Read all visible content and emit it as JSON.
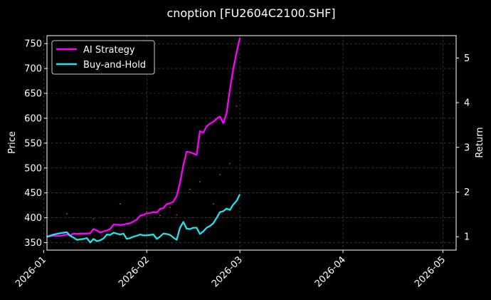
{
  "chart_data": {
    "type": "line",
    "title": "cnoption [FU2604C2100.SHF]",
    "xlabel": "",
    "ylabel": "Price",
    "y2label": "Return",
    "x_axis_type": "date",
    "xlim": [
      "2026-01-02",
      "2026-05-05"
    ],
    "ylim": [
      335,
      766
    ],
    "y2lim": [
      0.7,
      5.5
    ],
    "x_ticks": [
      "2026-01",
      "2026-02",
      "2026-03",
      "2026-04",
      "2026-05"
    ],
    "y_ticks": [
      350,
      400,
      450,
      500,
      550,
      600,
      650,
      700,
      750
    ],
    "y2_ticks": [
      1,
      2,
      3,
      4,
      5
    ],
    "grid": true,
    "legend_position": "top-left",
    "background": "#000000",
    "series": [
      {
        "name": "AI Strategy",
        "axis": "right",
        "color": "#ff00ff",
        "x": [
          "2026-01-02",
          "2026-01-04",
          "2026-01-06",
          "2026-01-08",
          "2026-01-09",
          "2026-01-10",
          "2026-01-11",
          "2026-01-12",
          "2026-01-13",
          "2026-01-14",
          "2026-01-15",
          "2026-01-16",
          "2026-01-17",
          "2026-01-18",
          "2026-01-19",
          "2026-01-20",
          "2026-01-21",
          "2026-01-22",
          "2026-01-23",
          "2026-01-24",
          "2026-01-25",
          "2026-01-26",
          "2026-01-27",
          "2026-01-28",
          "2026-01-29",
          "2026-01-30",
          "2026-01-31",
          "2026-02-01",
          "2026-02-02",
          "2026-02-03",
          "2026-02-04",
          "2026-02-05",
          "2026-02-06",
          "2026-02-07",
          "2026-02-08",
          "2026-02-09",
          "2026-02-10",
          "2026-02-11",
          "2026-02-12",
          "2026-02-13",
          "2026-02-14",
          "2026-02-15",
          "2026-02-16",
          "2026-02-17",
          "2026-02-18",
          "2026-02-19",
          "2026-02-20",
          "2026-02-21",
          "2026-02-22",
          "2026-02-23",
          "2026-02-24",
          "2026-02-25",
          "2026-02-26",
          "2026-02-27",
          "2026-02-28",
          "2026-03-01"
        ],
        "values": [
          1.0,
          1.02,
          1.02,
          1.05,
          1.03,
          1.07,
          1.06,
          1.07,
          1.07,
          1.07,
          1.08,
          1.17,
          1.14,
          1.09,
          1.12,
          1.14,
          1.17,
          1.27,
          1.27,
          1.26,
          1.27,
          1.29,
          1.3,
          1.34,
          1.38,
          1.47,
          1.49,
          1.52,
          1.53,
          1.55,
          1.54,
          1.62,
          1.64,
          1.73,
          1.75,
          1.78,
          1.91,
          2.21,
          2.6,
          2.9,
          2.89,
          2.86,
          2.83,
          3.36,
          3.33,
          3.47,
          3.53,
          3.57,
          3.64,
          3.69,
          3.54,
          3.76,
          4.29,
          4.75,
          5.12,
          5.45
        ]
      },
      {
        "name": "Buy-and-Hold",
        "axis": "right",
        "color": "#22e3ec",
        "x": [
          "2026-01-02",
          "2026-01-04",
          "2026-01-06",
          "2026-01-08",
          "2026-01-09",
          "2026-01-10",
          "2026-01-11",
          "2026-01-12",
          "2026-01-13",
          "2026-01-14",
          "2026-01-15",
          "2026-01-16",
          "2026-01-17",
          "2026-01-18",
          "2026-01-19",
          "2026-01-20",
          "2026-01-21",
          "2026-01-22",
          "2026-01-23",
          "2026-01-24",
          "2026-01-25",
          "2026-01-26",
          "2026-01-27",
          "2026-01-28",
          "2026-01-29",
          "2026-01-30",
          "2026-01-31",
          "2026-02-01",
          "2026-02-02",
          "2026-02-03",
          "2026-02-04",
          "2026-02-05",
          "2026-02-06",
          "2026-02-07",
          "2026-02-08",
          "2026-02-09",
          "2026-02-10",
          "2026-02-11",
          "2026-02-12",
          "2026-02-13",
          "2026-02-14",
          "2026-02-15",
          "2026-02-16",
          "2026-02-17",
          "2026-02-18",
          "2026-02-19",
          "2026-02-20",
          "2026-02-21",
          "2026-02-22",
          "2026-02-23",
          "2026-02-24",
          "2026-02-25",
          "2026-02-26",
          "2026-02-27",
          "2026-02-28",
          "2026-03-01"
        ],
        "values": [
          1.0,
          1.05,
          1.08,
          1.1,
          1.02,
          0.98,
          0.93,
          0.94,
          0.95,
          0.97,
          0.87,
          0.95,
          0.9,
          0.92,
          0.96,
          1.05,
          1.04,
          1.09,
          1.07,
          1.05,
          1.07,
          0.95,
          0.97,
          1.0,
          1.02,
          1.05,
          1.03,
          1.03,
          1.04,
          1.05,
          0.95,
          1.0,
          1.07,
          1.06,
          1.04,
          0.98,
          0.93,
          1.2,
          1.33,
          1.18,
          1.17,
          1.2,
          1.2,
          1.06,
          1.12,
          1.2,
          1.24,
          1.3,
          1.42,
          1.55,
          1.57,
          1.63,
          1.6,
          1.72,
          1.8,
          1.95
        ]
      },
      {
        "name": "",
        "axis": "left",
        "color": "#ff2d2d",
        "style": "points",
        "x": [
          "2026-01-08",
          "2026-01-16",
          "2026-01-24",
          "2026-02-01",
          "2026-02-05",
          "2026-02-08",
          "2026-02-10",
          "2026-02-14",
          "2026-02-17",
          "2026-02-21",
          "2026-02-23",
          "2026-02-26",
          "2026-02-28"
        ],
        "values": [
          408,
          398,
          428,
          412,
          405,
          421,
          406,
          457,
          472,
          428,
          487,
          509,
          624
        ]
      }
    ]
  }
}
